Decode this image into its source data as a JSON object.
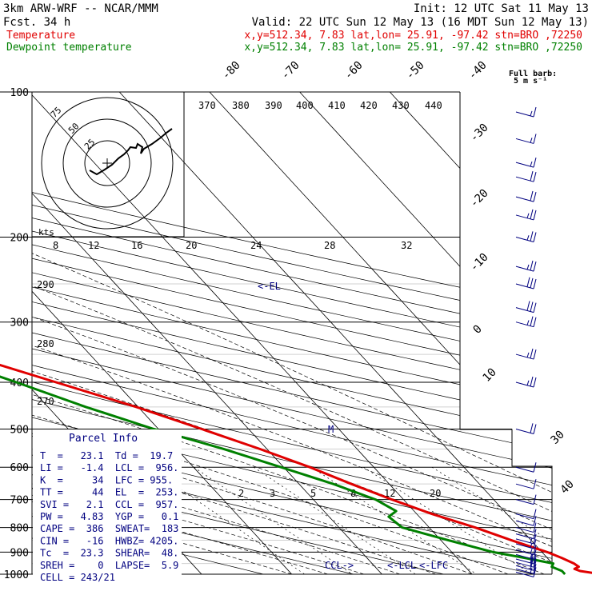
{
  "header": {
    "model": "3km ARW-WRF -- NCAR/MMM",
    "init": "Init: 12 UTC Sat 11 May 13",
    "fcst": "Fcst.   34 h",
    "valid": "Valid: 22 UTC Sun 12 May 13 (16 MDT Sun 12 May 13)"
  },
  "legend": [
    {
      "name": "Temperature",
      "info": "x,y=512.34,  7.83   lat,lon= 25.91, -97.42  stn=BRO ,72250",
      "color": "#e00000"
    },
    {
      "name": "Dewpoint temperature",
      "info": "x,y=512.34,  7.83   lat,lon= 25.91, -97.42  stn=BRO ,72250",
      "color": "#008000"
    }
  ],
  "barb_key": {
    "line1": "Full barb:",
    "line2": "5 m s⁻¹"
  },
  "parcel": {
    "title": "Parcel Info",
    "rows": [
      "T  =   23.1  Td =  19.7",
      "LI =   -1.4  LCL =  956.",
      "K  =     34  LFC = 955.",
      "TT =     44  EL  =  253.",
      "SVI =   2.1  CCL =  957.",
      "PW =   4.83  YGP =   0.1",
      "CAPE =  386  SWEAT=  183",
      "CIN =   -16  HWBZ= 4205.",
      "Tc  =  23.3  SHEAR=  48.",
      "SREH =    0  LAPSE=  5.9",
      "CELL = 243/21"
    ]
  },
  "hodo": {
    "units": "kts",
    "ring_labels": [
      "25",
      "50",
      "75"
    ]
  },
  "markers": {
    "el": "<-EL",
    "ccl": "CCL->",
    "lcl": "<-LCL",
    "lfc": "<-LFC",
    "m": "M"
  },
  "chart_data": {
    "type": "line",
    "title": "",
    "xlabel": "",
    "ylabel": "",
    "y_scale": "log pressure (hPa)",
    "pressure_ticks": [
      "100",
      "200",
      "300",
      "400",
      "500",
      "600",
      "700",
      "800",
      "900",
      "1000"
    ],
    "isotherm_labels": [
      "-80",
      "-70",
      "-60",
      "-50",
      "-40",
      "-30",
      "-20",
      "-10",
      "0",
      "10",
      "30",
      "40"
    ],
    "dry_adiabat_top_labels": [
      "370",
      "380",
      "390",
      "400",
      "410",
      "420",
      "430",
      "440"
    ],
    "dry_adiabat_left_labels": [
      "290",
      "280",
      "270"
    ],
    "moist_adiabat_labels": [
      "8",
      "12",
      "16",
      "20",
      "24",
      "28",
      "32"
    ],
    "mixing_ratio_labels": [
      "2",
      "3",
      "5",
      "8",
      "12",
      "20"
    ],
    "series": [
      {
        "name": "Temperature",
        "color": "#e00000",
        "points": [
          [
            1000,
            24.3
          ],
          [
            985,
            22.3
          ],
          [
            975,
            21.9
          ],
          [
            965,
            22.6
          ],
          [
            950,
            22.4
          ],
          [
            925,
            21.6
          ],
          [
            900,
            20.6
          ],
          [
            850,
            17.8
          ],
          [
            800,
            15.1
          ],
          [
            750,
            11.7
          ],
          [
            700,
            8.7
          ],
          [
            650,
            5.8
          ],
          [
            600,
            2.9
          ],
          [
            550,
            -0.8
          ],
          [
            500,
            -5.2
          ],
          [
            450,
            -10.2
          ],
          [
            400,
            -16.6
          ],
          [
            350,
            -23.8
          ],
          [
            300,
            -32.6
          ],
          [
            250,
            -43.8
          ],
          [
            200,
            -55.9
          ],
          [
            170,
            -64.6
          ],
          [
            150,
            -69.0
          ],
          [
            130,
            -70.0
          ],
          [
            115,
            -71.0
          ],
          [
            100,
            -72.6
          ]
        ]
      },
      {
        "name": "Dewpoint temperature",
        "color": "#008000",
        "points": [
          [
            1000,
            20.3
          ],
          [
            985,
            20.3
          ],
          [
            965,
            19.6
          ],
          [
            950,
            20.1
          ],
          [
            925,
            17.5
          ],
          [
            900,
            14.6
          ],
          [
            850,
            10.8
          ],
          [
            800,
            7.0
          ],
          [
            760,
            6.6
          ],
          [
            740,
            8.0
          ],
          [
            700,
            6.9
          ],
          [
            650,
            3.8
          ],
          [
            600,
            -0.3
          ],
          [
            550,
            -4.8
          ],
          [
            500,
            -10.5
          ],
          [
            450,
            -15.8
          ],
          [
            400,
            -21.0
          ],
          [
            350,
            -27.2
          ],
          [
            320,
            -33.4
          ],
          [
            300,
            -42.8
          ],
          [
            280,
            -53.4
          ],
          [
            250,
            -64.4
          ],
          [
            220,
            -74.6
          ],
          [
            200,
            -79.4
          ],
          [
            180,
            -81.0
          ],
          [
            150,
            -83.6
          ],
          [
            130,
            -84.2
          ],
          [
            115,
            -83.4
          ],
          [
            100,
            -86.9
          ]
        ]
      }
    ],
    "wind_barbs_kt": [
      {
        "p": 990,
        "spd": 10
      },
      {
        "p": 975,
        "spd": 15
      },
      {
        "p": 960,
        "spd": 20
      },
      {
        "p": 945,
        "spd": 20
      },
      {
        "p": 930,
        "spd": 20
      },
      {
        "p": 910,
        "spd": 15
      },
      {
        "p": 890,
        "spd": 15
      },
      {
        "p": 865,
        "spd": 15
      },
      {
        "p": 845,
        "spd": 15
      },
      {
        "p": 825,
        "spd": 10
      },
      {
        "p": 800,
        "spd": 10
      },
      {
        "p": 775,
        "spd": 10
      },
      {
        "p": 750,
        "spd": 10
      },
      {
        "p": 700,
        "spd": 10
      },
      {
        "p": 650,
        "spd": 10
      },
      {
        "p": 600,
        "spd": 10
      },
      {
        "p": 500,
        "spd": 20
      },
      {
        "p": 400,
        "spd": 25
      },
      {
        "p": 350,
        "spd": 25
      },
      {
        "p": 300,
        "spd": 25
      },
      {
        "p": 280,
        "spd": 30
      },
      {
        "p": 250,
        "spd": 30
      },
      {
        "p": 230,
        "spd": 25
      },
      {
        "p": 200,
        "spd": 25
      },
      {
        "p": 180,
        "spd": 25
      },
      {
        "p": 165,
        "spd": 20
      },
      {
        "p": 150,
        "spd": 20
      },
      {
        "p": 140,
        "spd": 15
      },
      {
        "p": 125,
        "spd": 15
      },
      {
        "p": 110,
        "spd": 15
      }
    ]
  }
}
